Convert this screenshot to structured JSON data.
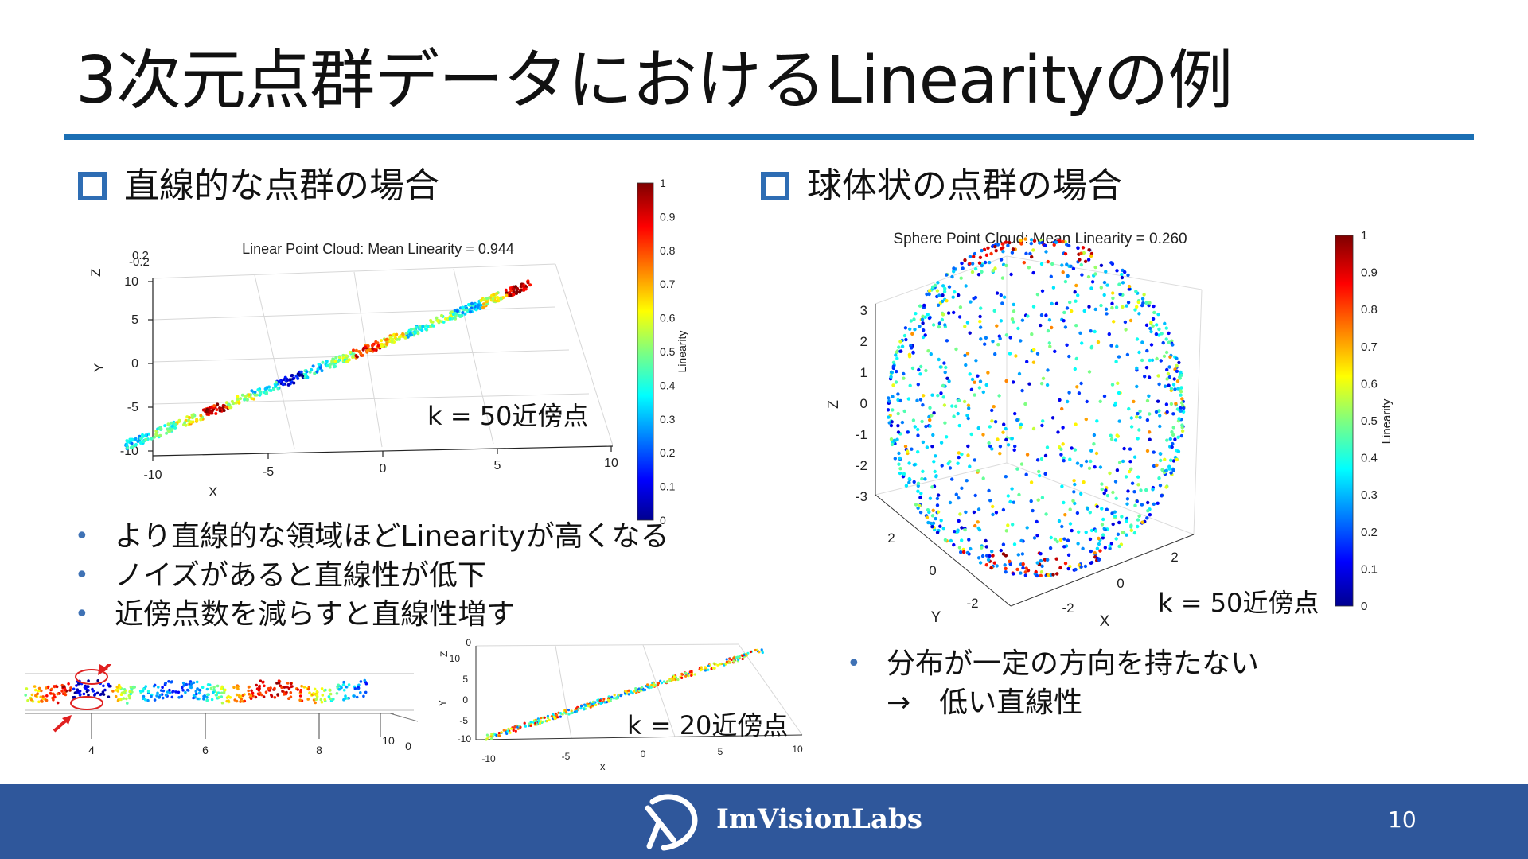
{
  "slide": {
    "title": "3次元点群データにおけるLinearityの例",
    "page_number": "10",
    "accent_color": "#1b6fb4",
    "footer_color": "#2f579b"
  },
  "left": {
    "heading": "直線的な点群の場合",
    "plot_title": "Linear Point Cloud: Mean Linearity = 0.944",
    "k_label": "k = 50近傍点",
    "axis": {
      "z_label": "Z",
      "y_label": "Y",
      "x_label": "X",
      "y_ticks": [
        "10",
        "5",
        "0",
        "-5",
        "-10"
      ],
      "x_ticks": [
        "-10",
        "-5",
        "0",
        "5",
        "10"
      ],
      "top_ticks": [
        "0.2",
        "-0.2"
      ]
    },
    "colorbar": {
      "label": "Linearity",
      "ticks": [
        "1",
        "0.9",
        "0.8",
        "0.7",
        "0.6",
        "0.5",
        "0.4",
        "0.3",
        "0.2",
        "0.1",
        "0"
      ]
    },
    "bullets": [
      "より直線的な領域ほどLinearityが高くなる",
      "ノイズがあると直線性が低下",
      "近傍点数を減らすと直線性増す"
    ],
    "zoom_ticks": [
      "4",
      "6",
      "8",
      "10",
      "0"
    ],
    "small_plot": {
      "k_label": "k = 20近傍点",
      "z_label": "Z",
      "y_label": "Y",
      "x_label": "x",
      "left_ticks": [
        "0",
        "10",
        "5",
        "0",
        "-5",
        "-10"
      ],
      "x_ticks": [
        "-10",
        "-5",
        "0",
        "5",
        "10"
      ]
    }
  },
  "right": {
    "heading": "球体状の点群の場合",
    "plot_title": "Sphere Point Cloud: Mean Linearity = 0.260",
    "k_label": "k = 50近傍点",
    "axis": {
      "z_label": "Z",
      "y_label": "Y",
      "x_label": "X",
      "z_ticks": [
        "3",
        "2",
        "1",
        "0",
        "-1",
        "-2",
        "-3"
      ],
      "y_ticks": [
        "2",
        "0",
        "-2"
      ],
      "x_ticks": [
        "-2",
        "0",
        "2"
      ]
    },
    "colorbar": {
      "label": "Linearity",
      "ticks": [
        "1",
        "0.9",
        "0.8",
        "0.7",
        "0.6",
        "0.5",
        "0.4",
        "0.3",
        "0.2",
        "0.1",
        "0"
      ]
    },
    "bullets": [
      "分布が一定の方向を持たない",
      "→　低い直線性"
    ]
  },
  "footer": {
    "logo_text": "ImVisionLabs",
    "logo_icon": "imvisionlabs-logo-icon"
  }
}
